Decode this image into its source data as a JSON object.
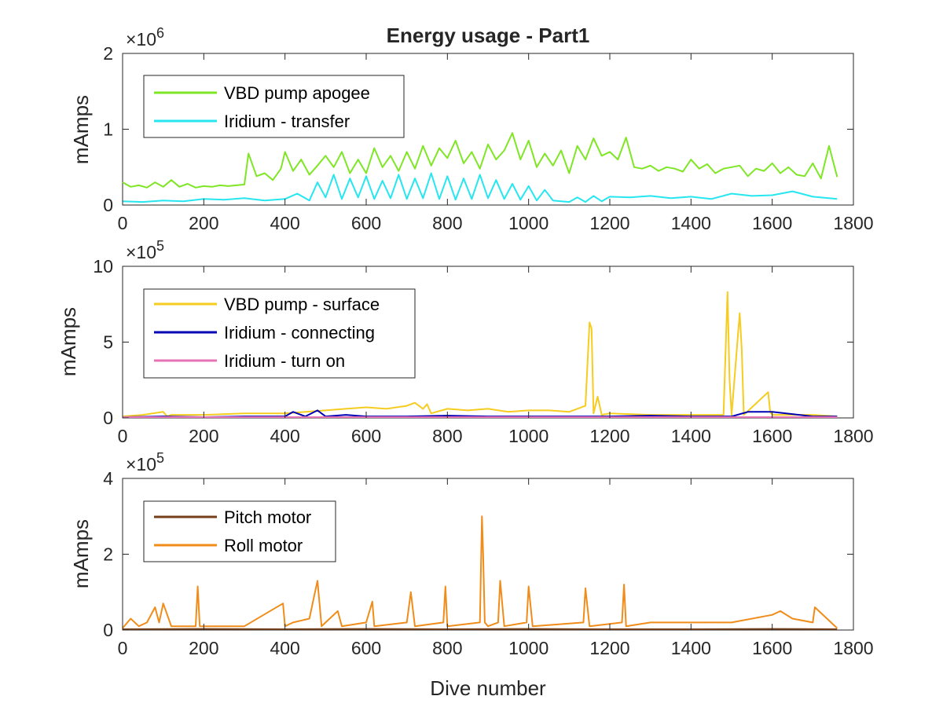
{
  "chart_data": [
    {
      "type": "line",
      "title": "Energy usage - Part1",
      "xlabel": "",
      "ylabel": "mAmps",
      "xlim": [
        0,
        1800
      ],
      "ylim": [
        0,
        2000000
      ],
      "exponent_label": "×10",
      "exponent": "6",
      "x_ticks": [
        "0",
        "200",
        "400",
        "600",
        "800",
        "1000",
        "1200",
        "1400",
        "1600",
        "1800"
      ],
      "y_ticks": [
        "0",
        "1",
        "2"
      ],
      "legend_position": "top-left",
      "series": [
        {
          "name": "VBD pump apogee",
          "color": "#7fe626",
          "x": [
            0,
            20,
            40,
            60,
            80,
            100,
            120,
            140,
            160,
            180,
            200,
            220,
            240,
            260,
            280,
            300,
            310,
            330,
            350,
            370,
            390,
            400,
            420,
            440,
            460,
            480,
            500,
            520,
            540,
            560,
            580,
            600,
            620,
            640,
            660,
            680,
            700,
            720,
            740,
            760,
            780,
            800,
            820,
            840,
            860,
            880,
            900,
            920,
            940,
            960,
            980,
            1000,
            1020,
            1040,
            1060,
            1080,
            1100,
            1120,
            1140,
            1160,
            1180,
            1200,
            1220,
            1240,
            1260,
            1280,
            1300,
            1320,
            1340,
            1360,
            1380,
            1400,
            1420,
            1440,
            1460,
            1480,
            1500,
            1520,
            1540,
            1560,
            1580,
            1600,
            1620,
            1640,
            1660,
            1680,
            1700,
            1720,
            1740,
            1760
          ],
          "y": [
            300000,
            240000,
            260000,
            230000,
            300000,
            240000,
            330000,
            240000,
            280000,
            230000,
            250000,
            240000,
            260000,
            250000,
            260000,
            270000,
            680000,
            380000,
            420000,
            330000,
            480000,
            700000,
            450000,
            600000,
            400000,
            520000,
            650000,
            500000,
            700000,
            420000,
            600000,
            420000,
            750000,
            500000,
            650000,
            450000,
            700000,
            480000,
            780000,
            520000,
            750000,
            620000,
            850000,
            550000,
            700000,
            480000,
            800000,
            600000,
            720000,
            950000,
            600000,
            850000,
            500000,
            680000,
            520000,
            720000,
            420000,
            780000,
            600000,
            880000,
            650000,
            700000,
            600000,
            890000,
            500000,
            480000,
            520000,
            450000,
            500000,
            480000,
            440000,
            600000,
            480000,
            540000,
            420000,
            480000,
            500000,
            520000,
            380000,
            480000,
            450000,
            550000,
            420000,
            500000,
            400000,
            380000,
            550000,
            350000,
            780000,
            370000
          ]
        },
        {
          "name": "Iridium - transfer",
          "color": "#26e6f0",
          "x": [
            0,
            50,
            100,
            150,
            200,
            250,
            300,
            350,
            400,
            430,
            460,
            480,
            500,
            520,
            540,
            560,
            580,
            600,
            620,
            640,
            660,
            680,
            700,
            720,
            740,
            760,
            780,
            800,
            820,
            840,
            860,
            880,
            900,
            920,
            940,
            960,
            980,
            1000,
            1020,
            1040,
            1060,
            1080,
            1100,
            1120,
            1140,
            1160,
            1180,
            1200,
            1250,
            1300,
            1350,
            1400,
            1450,
            1500,
            1550,
            1600,
            1650,
            1700,
            1760
          ],
          "y": [
            50000,
            40000,
            60000,
            50000,
            80000,
            70000,
            90000,
            60000,
            80000,
            150000,
            60000,
            300000,
            100000,
            400000,
            80000,
            350000,
            100000,
            380000,
            80000,
            320000,
            90000,
            400000,
            80000,
            350000,
            90000,
            420000,
            80000,
            380000,
            70000,
            350000,
            80000,
            400000,
            90000,
            330000,
            80000,
            280000,
            70000,
            250000,
            60000,
            200000,
            60000,
            50000,
            40000,
            100000,
            40000,
            120000,
            50000,
            110000,
            100000,
            120000,
            90000,
            110000,
            80000,
            150000,
            120000,
            130000,
            180000,
            110000,
            80000
          ]
        }
      ]
    },
    {
      "type": "line",
      "title": "",
      "xlabel": "",
      "ylabel": "mAmps",
      "xlim": [
        0,
        1800
      ],
      "ylim": [
        0,
        1000000
      ],
      "exponent_label": "×10",
      "exponent": "5",
      "x_ticks": [
        "0",
        "200",
        "400",
        "600",
        "800",
        "1000",
        "1200",
        "1400",
        "1600",
        "1800"
      ],
      "y_ticks": [
        "0",
        "5",
        "10"
      ],
      "legend_position": "top-left",
      "series": [
        {
          "name": "VBD pump - surface",
          "color": "#f5cc1f",
          "x": [
            0,
            50,
            100,
            110,
            120,
            200,
            300,
            400,
            500,
            550,
            600,
            650,
            700,
            720,
            740,
            750,
            760,
            800,
            850,
            900,
            950,
            1000,
            1050,
            1100,
            1140,
            1150,
            1155,
            1160,
            1170,
            1180,
            1200,
            1300,
            1400,
            1480,
            1490,
            1495,
            1500,
            1520,
            1525,
            1530,
            1590,
            1595,
            1600,
            1700,
            1760
          ],
          "y": [
            10000,
            20000,
            40000,
            10000,
            20000,
            20000,
            30000,
            30000,
            50000,
            60000,
            70000,
            60000,
            80000,
            100000,
            60000,
            90000,
            30000,
            60000,
            50000,
            60000,
            40000,
            50000,
            50000,
            40000,
            80000,
            630000,
            590000,
            30000,
            140000,
            20000,
            30000,
            20000,
            20000,
            20000,
            830000,
            250000,
            20000,
            690000,
            450000,
            20000,
            170000,
            40000,
            20000,
            20000,
            10000
          ]
        },
        {
          "name": "Iridium - connecting",
          "color": "#0000b4",
          "x": [
            0,
            100,
            200,
            300,
            400,
            420,
            450,
            480,
            500,
            550,
            600,
            700,
            800,
            900,
            1000,
            1100,
            1200,
            1300,
            1400,
            1500,
            1540,
            1600,
            1700,
            1760
          ],
          "y": [
            5000,
            10000,
            5000,
            10000,
            10000,
            40000,
            10000,
            50000,
            10000,
            20000,
            10000,
            10000,
            15000,
            10000,
            10000,
            10000,
            10000,
            15000,
            10000,
            10000,
            40000,
            40000,
            10000,
            10000
          ]
        },
        {
          "name": "Iridium - turn on",
          "color": "#e673b4",
          "x": [
            0,
            300,
            600,
            900,
            1200,
            1500,
            1760
          ],
          "y": [
            5000,
            5000,
            5000,
            5000,
            5000,
            5000,
            5000
          ]
        }
      ]
    },
    {
      "type": "line",
      "title": "",
      "xlabel": "Dive number",
      "ylabel": "mAmps",
      "xlim": [
        0,
        1800
      ],
      "ylim": [
        0,
        400000
      ],
      "exponent_label": "×10",
      "exponent": "5",
      "x_ticks": [
        "0",
        "200",
        "400",
        "600",
        "800",
        "1000",
        "1200",
        "1400",
        "1600",
        "1800"
      ],
      "y_ticks": [
        "0",
        "2",
        "4"
      ],
      "legend_position": "top-left",
      "series": [
        {
          "name": "Pitch motor",
          "color": "#733f1a",
          "x": [
            0,
            200,
            400,
            600,
            800,
            1000,
            1200,
            1400,
            1600,
            1760
          ],
          "y": [
            2000,
            3000,
            2000,
            3000,
            2000,
            3000,
            2000,
            2000,
            3000,
            2000
          ]
        },
        {
          "name": "Roll motor",
          "color": "#f08c1a",
          "x": [
            0,
            20,
            40,
            60,
            80,
            90,
            100,
            120,
            180,
            185,
            190,
            200,
            300,
            395,
            400,
            420,
            460,
            470,
            480,
            490,
            500,
            530,
            540,
            600,
            615,
            620,
            700,
            710,
            720,
            790,
            795,
            800,
            880,
            885,
            888,
            892,
            900,
            925,
            930,
            940,
            995,
            1000,
            1010,
            1135,
            1140,
            1150,
            1230,
            1235,
            1240,
            1300,
            1400,
            1500,
            1600,
            1620,
            1650,
            1700,
            1705,
            1760
          ],
          "y": [
            5000,
            30000,
            10000,
            20000,
            60000,
            20000,
            70000,
            10000,
            10000,
            115000,
            10000,
            10000,
            10000,
            70000,
            10000,
            20000,
            30000,
            80000,
            130000,
            10000,
            20000,
            50000,
            10000,
            20000,
            75000,
            10000,
            20000,
            100000,
            10000,
            20000,
            115000,
            10000,
            20000,
            300000,
            200000,
            20000,
            10000,
            20000,
            130000,
            10000,
            20000,
            115000,
            10000,
            20000,
            110000,
            10000,
            20000,
            120000,
            10000,
            20000,
            20000,
            20000,
            40000,
            50000,
            30000,
            20000,
            60000,
            5000
          ]
        }
      ]
    }
  ]
}
